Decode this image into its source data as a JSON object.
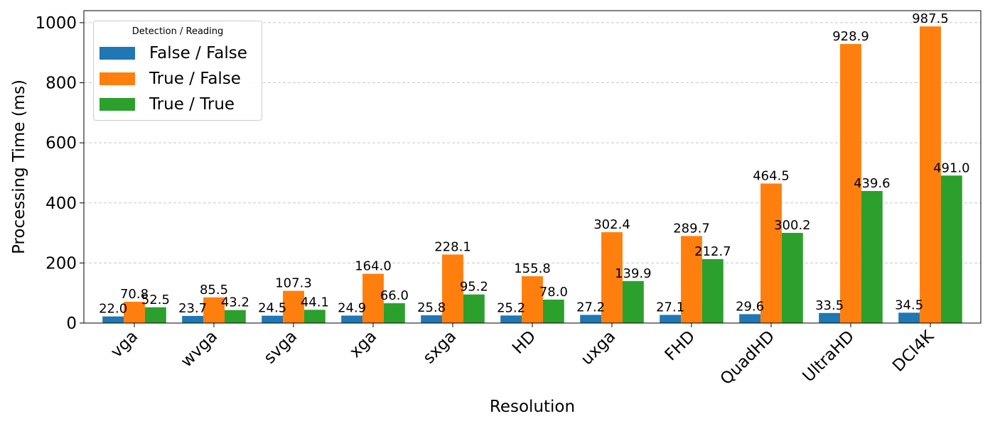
{
  "chart_data": {
    "type": "bar",
    "xlabel": "Resolution",
    "ylabel": "Processing Time (ms)",
    "ylim": [
      0,
      1040
    ],
    "yticks": [
      0,
      200,
      400,
      600,
      800,
      1000
    ],
    "grid": "y-dashed",
    "legend_title": "Detection / Reading",
    "legend_placement": "top-left",
    "categories": [
      "vga",
      "wvga",
      "svga",
      "xga",
      "sxga",
      "HD",
      "uxga",
      "FHD",
      "QuadHD",
      "UltraHD",
      "DCI4K"
    ],
    "series": [
      {
        "name": "False / False",
        "color": "#1f77b4",
        "values": [
          22.0,
          23.7,
          24.5,
          24.9,
          25.8,
          25.2,
          27.2,
          27.1,
          29.6,
          33.5,
          34.5
        ]
      },
      {
        "name": "True / False",
        "color": "#ff7f0e",
        "values": [
          70.8,
          85.5,
          107.3,
          164.0,
          228.1,
          155.8,
          302.4,
          289.7,
          464.5,
          928.9,
          987.5
        ]
      },
      {
        "name": "True / True",
        "color": "#2ca02c",
        "values": [
          52.5,
          43.2,
          44.1,
          66.0,
          95.2,
          78.0,
          139.9,
          212.7,
          300.2,
          439.6,
          491.0
        ]
      }
    ]
  }
}
